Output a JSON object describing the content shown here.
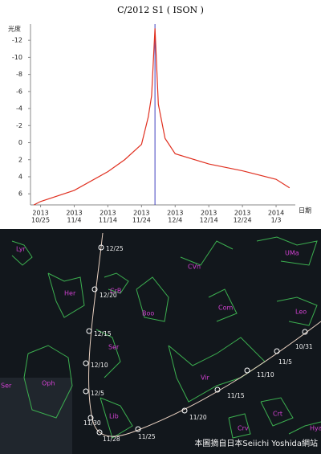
{
  "chart_data": {
    "type": "line",
    "title": "C/2012 S1 ( ISON )",
    "y_label": "光度",
    "x_label": "日期",
    "x": [
      "2013-10-23",
      "2013-10-25",
      "2013-11-04",
      "2013-11-14",
      "2013-11-19",
      "2013-11-24",
      "2013-11-26",
      "2013-11-27",
      "2013-11-28",
      "2013-11-29",
      "2013-12-01",
      "2013-12-04",
      "2013-12-14",
      "2013-12-24",
      "2014-01-03",
      "2014-01-07"
    ],
    "series": [
      {
        "color": "#e03020",
        "values": [
          7.3,
          6.9,
          5.6,
          3.4,
          2.0,
          0.2,
          -3.0,
          -5.5,
          -13.4,
          -4.5,
          -0.5,
          1.3,
          2.5,
          3.3,
          4.3,
          5.3
        ]
      }
    ],
    "markers": [
      {
        "x": "2013-11-28",
        "color": "#4040c0"
      }
    ],
    "xlim": [
      "2013-10-22",
      "2014-01-08"
    ],
    "xticks": [
      {
        "value": "2013-10-25",
        "label": [
          "2013",
          "10/25"
        ]
      },
      {
        "value": "2013-11-04",
        "label": [
          "2013",
          "11/4"
        ]
      },
      {
        "value": "2013-11-14",
        "label": [
          "2013",
          "11/14"
        ]
      },
      {
        "value": "2013-11-24",
        "label": [
          "2013",
          "11/24"
        ]
      },
      {
        "value": "2013-12-04",
        "label": [
          "2013",
          "12/4"
        ]
      },
      {
        "value": "2013-12-14",
        "label": [
          "2013",
          "12/14"
        ]
      },
      {
        "value": "2013-12-24",
        "label": [
          "2013",
          "12/24"
        ]
      },
      {
        "value": "2014-01-03",
        "label": [
          "2014",
          "1/3"
        ]
      }
    ],
    "ylim": [
      7.3,
      -13.9
    ],
    "yticks": [
      -12,
      -10,
      -8,
      -6,
      -4,
      -2,
      0,
      2,
      4,
      6
    ],
    "grid": false
  },
  "star_map": {
    "constellations": [
      "Lyr",
      "Her",
      "CrB",
      "Boo",
      "CVn",
      "UMa",
      "Com",
      "Leo",
      "Ser",
      "Oph",
      "Vir",
      "Lib",
      "Crt",
      "Crv",
      "Hya",
      "Ser"
    ],
    "dates": [
      "12/25",
      "12/20",
      "12/15",
      "12/10",
      "12/5",
      "11/30",
      "11/28",
      "11/25",
      "11/20",
      "11/15",
      "11/10",
      "11/5",
      "10/31"
    ],
    "credit": "本圖摘自日本Seiichi Yoshida網站"
  }
}
